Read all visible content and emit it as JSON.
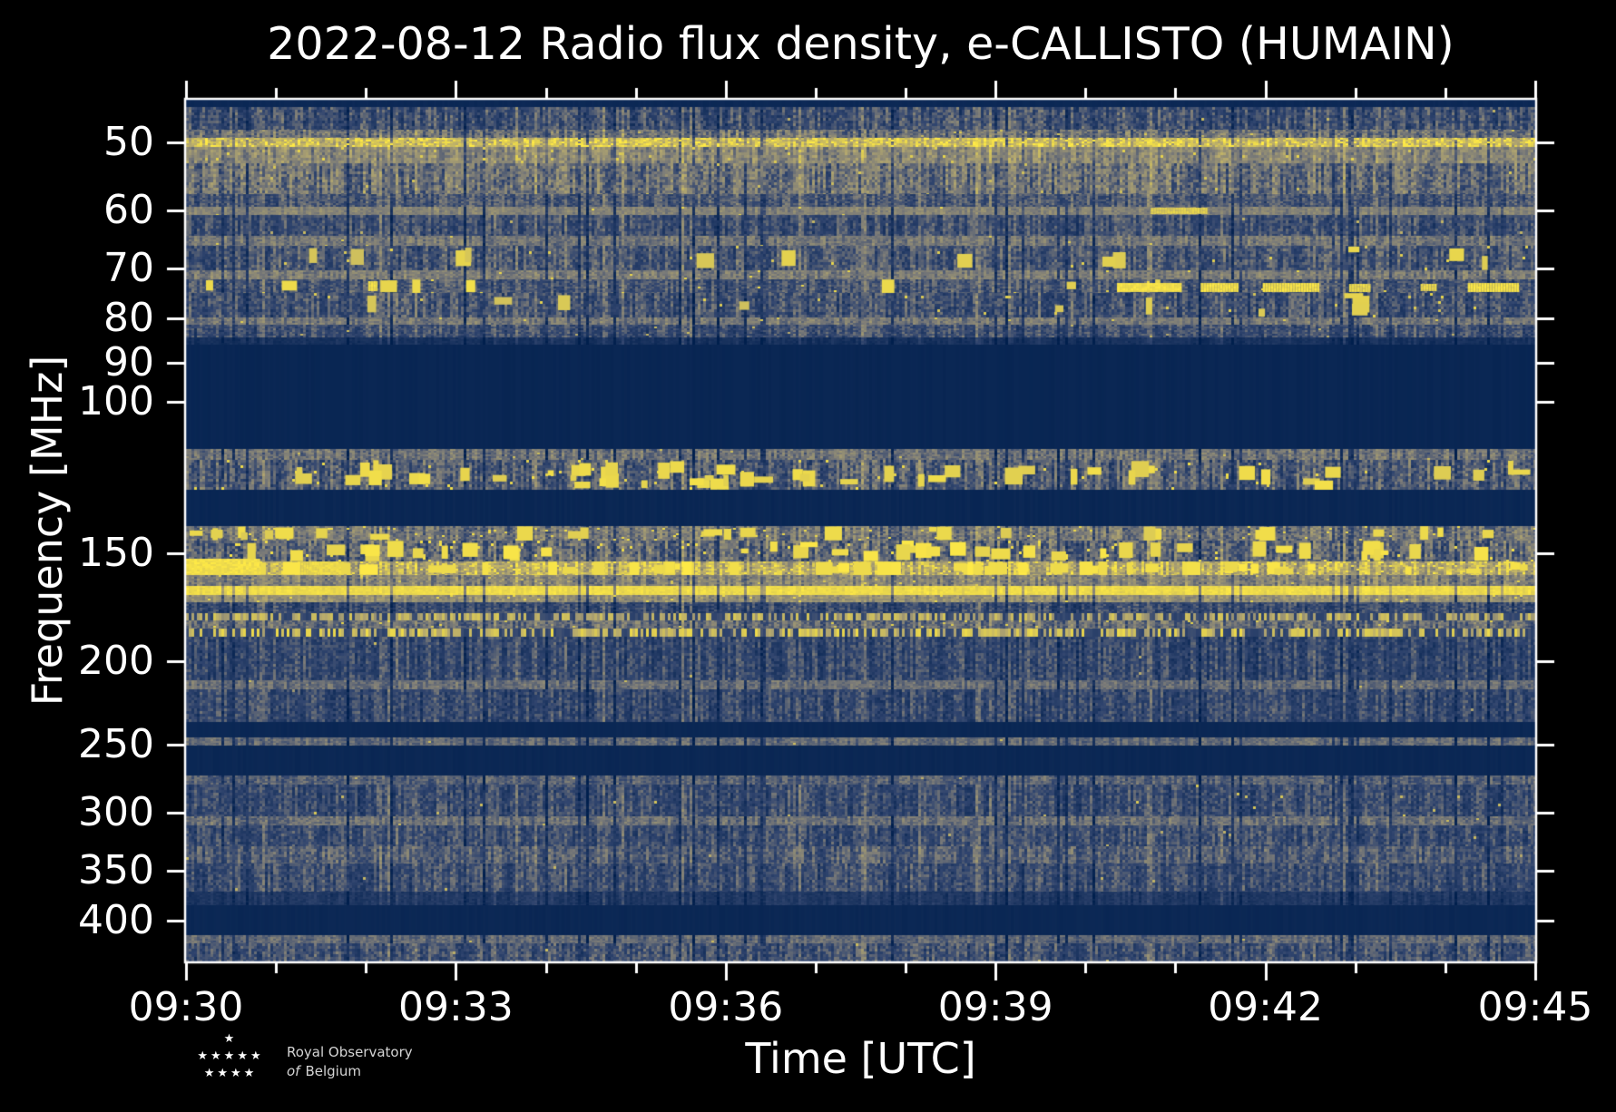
{
  "title": "2022-08-12 Radio flux density, e-CALLISTO (HUMAIN)",
  "axes": {
    "xlabel": "Time [UTC]",
    "ylabel": "Frequency [MHz]",
    "x_tick_labels": [
      "09:30",
      "09:33",
      "09:36",
      "09:39",
      "09:42",
      "09:45"
    ],
    "x_minor_ticks_per_major": 3,
    "y_tick_labels": [
      "50",
      "60",
      "70",
      "80",
      "90",
      "100",
      "150",
      "200",
      "250",
      "300",
      "350",
      "400"
    ],
    "y_tick_values_mhz": [
      50,
      60,
      70,
      80,
      90,
      100,
      150,
      200,
      250,
      300,
      350,
      400
    ]
  },
  "logo": {
    "star_rows": [
      "★",
      "★★★★★",
      "★★★★"
    ],
    "line1": "Royal Observatory",
    "line2_italic": "of",
    "line2": "Belgium"
  },
  "chart_data": {
    "type": "heatmap",
    "subtype": "radio-spectrogram",
    "title": "2022-08-12 Radio flux density, e-CALLISTO (HUMAIN)",
    "xlabel": "Time [UTC]",
    "ylabel": "Frequency [MHz]",
    "x_range_utc": [
      "09:30",
      "09:45"
    ],
    "x_tick_labels": [
      "09:30",
      "09:33",
      "09:36",
      "09:39",
      "09:42",
      "09:45"
    ],
    "x_minor_tick_minutes": 1,
    "y_scale": "log",
    "freq_min_mhz": 44.6,
    "freq_max_mhz": 446,
    "y_ticks_mhz": [
      50,
      60,
      70,
      80,
      90,
      100,
      150,
      200,
      250,
      300,
      350,
      400
    ],
    "grid": false,
    "legend": "none",
    "colormap": {
      "name": "cividis-like blue-to-yellow",
      "stops": [
        [
          0.0,
          "#001f4d"
        ],
        [
          0.3,
          "#32466f"
        ],
        [
          0.5,
          "#7b7b78"
        ],
        [
          0.72,
          "#b3a76f"
        ],
        [
          0.88,
          "#e5d34e"
        ],
        [
          1.0,
          "#ffea46"
        ]
      ]
    },
    "band_schema": "[y0_px, y1_px, base_intensity, col_var, row_var, type(0=solid,1=mottle,2=line,3=dashed), speckle_prob, speckle_val, blob_count] — y in plot pixels (0=top=44.6MHz, 950=bottom=446MHz, log frequency scale)",
    "bands": [
      [
        0,
        8,
        0.07,
        0.01,
        0.01,
        0,
        0,
        0,
        0
      ],
      [
        8,
        33,
        0.34,
        0.12,
        0.12,
        1,
        0.002,
        0.8,
        0
      ],
      [
        33,
        42,
        0.46,
        0.12,
        0.12,
        1,
        0.004,
        0.85,
        0
      ],
      [
        42,
        52,
        0.8,
        0.1,
        0.12,
        2,
        0.1,
        1.0,
        0
      ],
      [
        52,
        70,
        0.56,
        0.1,
        0.1,
        1,
        0.01,
        0.9,
        0
      ],
      [
        70,
        104,
        0.46,
        0.14,
        0.13,
        1,
        0.004,
        0.85,
        0
      ],
      [
        104,
        118,
        0.36,
        0.1,
        0.1,
        1,
        0,
        0,
        0
      ],
      [
        118,
        127,
        0.54,
        0.06,
        0.06,
        2,
        0.005,
        0.9,
        0
      ],
      [
        127,
        150,
        0.33,
        0.1,
        0.1,
        1,
        0.002,
        0.8,
        0
      ],
      [
        150,
        161,
        0.49,
        0.08,
        0.08,
        2,
        0.004,
        0.85,
        0
      ],
      [
        161,
        188,
        0.36,
        0.11,
        0.11,
        1,
        0.006,
        0.9,
        12
      ],
      [
        188,
        198,
        0.51,
        0.08,
        0.08,
        2,
        0.004,
        0.9,
        0
      ],
      [
        198,
        213,
        0.36,
        0.1,
        0.1,
        1,
        0.005,
        0.95,
        8
      ],
      [
        213,
        240,
        0.34,
        0.11,
        0.11,
        1,
        0.006,
        0.9,
        10
      ],
      [
        240,
        248,
        0.49,
        0.08,
        0.08,
        2,
        0.003,
        0.85,
        0
      ],
      [
        248,
        262,
        0.33,
        0.1,
        0.1,
        1,
        0.002,
        0.8,
        0
      ],
      [
        262,
        270,
        0.14,
        0.04,
        0.04,
        1,
        0,
        0,
        0
      ],
      [
        270,
        385,
        0.055,
        0.008,
        0.008,
        0,
        0,
        0,
        0
      ],
      [
        385,
        397,
        0.47,
        0.1,
        0.09,
        2,
        0.004,
        0.8,
        0
      ],
      [
        397,
        430,
        0.38,
        0.13,
        0.12,
        1,
        0.01,
        0.95,
        55
      ],
      [
        430,
        470,
        0.06,
        0.012,
        0.01,
        0,
        0,
        0,
        0
      ],
      [
        470,
        486,
        0.48,
        0.12,
        0.11,
        1,
        0.02,
        0.95,
        30
      ],
      [
        486,
        509,
        0.42,
        0.14,
        0.13,
        1,
        0.02,
        0.98,
        45
      ],
      [
        509,
        524,
        0.74,
        0.15,
        0.12,
        1,
        0.08,
        1.0,
        60
      ],
      [
        524,
        536,
        0.54,
        0.1,
        0.1,
        1,
        0.01,
        0.9,
        0
      ],
      [
        536,
        546,
        0.92,
        0.04,
        0.04,
        2,
        0,
        0,
        0
      ],
      [
        546,
        554,
        0.6,
        0.08,
        0.08,
        2,
        0.01,
        0.9,
        0
      ],
      [
        554,
        566,
        0.3,
        0.1,
        0.1,
        1,
        0,
        0,
        0
      ],
      [
        566,
        574,
        0.72,
        0.12,
        0.08,
        3,
        0,
        0,
        0
      ],
      [
        574,
        583,
        0.44,
        0.12,
        0.1,
        1,
        0.01,
        0.9,
        0
      ],
      [
        583,
        592,
        0.8,
        0.12,
        0.07,
        3,
        0,
        0,
        0
      ],
      [
        592,
        640,
        0.3,
        0.1,
        0.1,
        1,
        0.001,
        0.8,
        0
      ],
      [
        640,
        650,
        0.45,
        0.07,
        0.07,
        2,
        0.002,
        0.8,
        0
      ],
      [
        650,
        686,
        0.3,
        0.1,
        0.1,
        1,
        0.001,
        0.7,
        0
      ],
      [
        686,
        703,
        0.065,
        0.01,
        0.01,
        0,
        0,
        0,
        0
      ],
      [
        703,
        712,
        0.44,
        0.07,
        0.07,
        2,
        0.002,
        0.8,
        0
      ],
      [
        712,
        745,
        0.065,
        0.01,
        0.01,
        0,
        0,
        0,
        0
      ],
      [
        745,
        755,
        0.4,
        0.08,
        0.08,
        2,
        0.001,
        0.75,
        0
      ],
      [
        755,
        790,
        0.31,
        0.1,
        0.1,
        1,
        0.002,
        0.85,
        0
      ],
      [
        790,
        800,
        0.46,
        0.08,
        0.08,
        2,
        0.002,
        0.8,
        0
      ],
      [
        800,
        823,
        0.32,
        0.1,
        0.1,
        1,
        0.001,
        0.8,
        0
      ],
      [
        823,
        842,
        0.39,
        0.1,
        0.1,
        1,
        0.001,
        0.8,
        0
      ],
      [
        842,
        873,
        0.32,
        0.1,
        0.1,
        1,
        0.001,
        0.8,
        0
      ],
      [
        873,
        888,
        0.19,
        0.05,
        0.05,
        1,
        0,
        0,
        0
      ],
      [
        888,
        921,
        0.065,
        0.01,
        0.01,
        0,
        0,
        0,
        0
      ],
      [
        921,
        930,
        0.43,
        0.07,
        0.07,
        2,
        0.001,
        0.8,
        0
      ],
      [
        930,
        950,
        0.34,
        0.11,
        0.11,
        1,
        0.002,
        0.8,
        0
      ]
    ],
    "patch_schema": "[x_frac, width_frac, y0_px, y1_px, intensity] — notable bright features",
    "patches": [
      [
        0.0,
        0.055,
        506,
        524,
        1.0
      ],
      [
        0.085,
        0.03,
        509,
        524,
        0.97
      ],
      [
        0.135,
        0.007,
        200,
        211,
        1.0
      ],
      [
        0.69,
        0.048,
        202,
        212,
        1.0
      ],
      [
        0.752,
        0.028,
        202,
        212,
        1.0
      ],
      [
        0.798,
        0.042,
        202,
        212,
        1.0
      ],
      [
        0.862,
        0.016,
        203,
        212,
        0.95
      ],
      [
        0.915,
        0.012,
        203,
        211,
        0.95
      ],
      [
        0.95,
        0.038,
        202,
        212,
        1.0
      ],
      [
        0.715,
        0.042,
        119,
        126,
        0.92
      ]
    ]
  }
}
